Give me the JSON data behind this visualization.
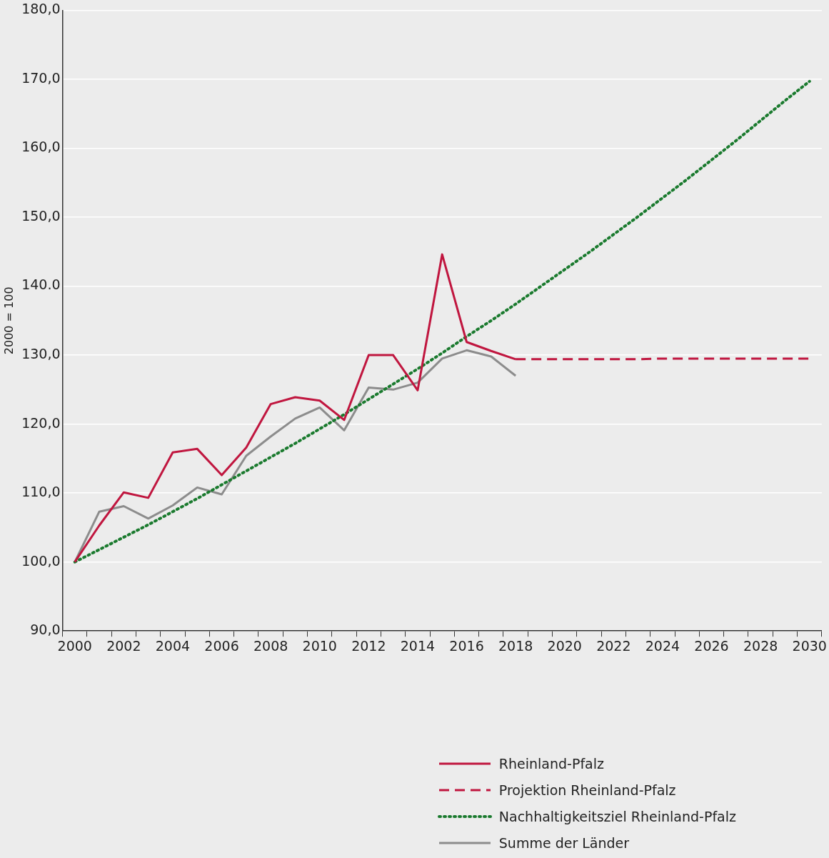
{
  "chart_data": {
    "type": "line",
    "ylabel": "2000 = 100",
    "categories": [
      "2000",
      null,
      "2002",
      null,
      "2004",
      null,
      "2006",
      null,
      "2008",
      null,
      "2010",
      null,
      "2012",
      null,
      "2014",
      null,
      "2016",
      null,
      "2018",
      null,
      "2020",
      null,
      "2022",
      null,
      "2024",
      null,
      "2026",
      null,
      "2028",
      null,
      "2030"
    ],
    "series": [
      {
        "name": "Rheinland-Pfalz",
        "color": "#c0163f",
        "line_style": "solid",
        "values": [
          100,
          105.3,
          110.1,
          109.3,
          115.9,
          116.4,
          112.6,
          116.6,
          122.9,
          123.9,
          123.4,
          120.6,
          130.0,
          130.0,
          124.9,
          144.6,
          131.9,
          130.6,
          129.4,
          null,
          null,
          null,
          null,
          null,
          null,
          null,
          null,
          null,
          null,
          null,
          null
        ]
      },
      {
        "name": "Projektion Rheinland-Pfalz",
        "color": "#c0163f",
        "line_style": "dashed",
        "values": [
          null,
          null,
          null,
          null,
          null,
          null,
          null,
          null,
          null,
          null,
          null,
          null,
          null,
          null,
          null,
          null,
          null,
          null,
          129.4,
          129.4,
          129.4,
          129.4,
          129.4,
          129.4,
          129.5,
          129.5,
          129.5,
          129.5,
          129.5,
          129.5,
          129.5
        ]
      },
      {
        "name": "Nachhaltigkeitsziel Rheinland-Pfalz",
        "color": "#1a7a2e",
        "line_style": "dotted",
        "values": [
          100,
          101.8,
          103.6,
          105.4,
          107.3,
          109.2,
          111.2,
          113.2,
          115.2,
          117.2,
          119.3,
          121.4,
          123.6,
          125.8,
          128.0,
          130.3,
          132.7,
          135.0,
          137.4,
          139.9,
          142.4,
          144.9,
          147.5,
          150.1,
          152.8,
          155.5,
          158.3,
          161.1,
          164.0,
          166.9,
          169.7
        ]
      },
      {
        "name": "Summe der Länder",
        "color": "#8c8c8c",
        "line_style": "solid",
        "values": [
          100,
          107.3,
          108.1,
          106.3,
          108.2,
          110.8,
          109.8,
          115.4,
          118.2,
          120.8,
          122.4,
          119.1,
          125.3,
          125.0,
          126.0,
          129.5,
          130.7,
          129.8,
          127.0,
          null,
          null,
          null,
          null,
          null,
          null,
          null,
          null,
          null,
          null,
          null,
          null
        ]
      }
    ],
    "ylim": [
      90,
      180
    ],
    "yticks": [
      {
        "value": 90,
        "label": "90,0"
      },
      {
        "value": 100,
        "label": "100,0"
      },
      {
        "value": 110,
        "label": "110,0"
      },
      {
        "value": 120,
        "label": "120,0"
      },
      {
        "value": 130,
        "label": "130,0"
      },
      {
        "value": 140,
        "label": "140.0"
      },
      {
        "value": 150,
        "label": "150,0"
      },
      {
        "value": 160,
        "label": "160,0"
      },
      {
        "value": 170,
        "label": "170,0"
      },
      {
        "value": 180,
        "label": "180,0"
      }
    ],
    "grid": "y",
    "legend": "bottom right",
    "marker": "none"
  }
}
